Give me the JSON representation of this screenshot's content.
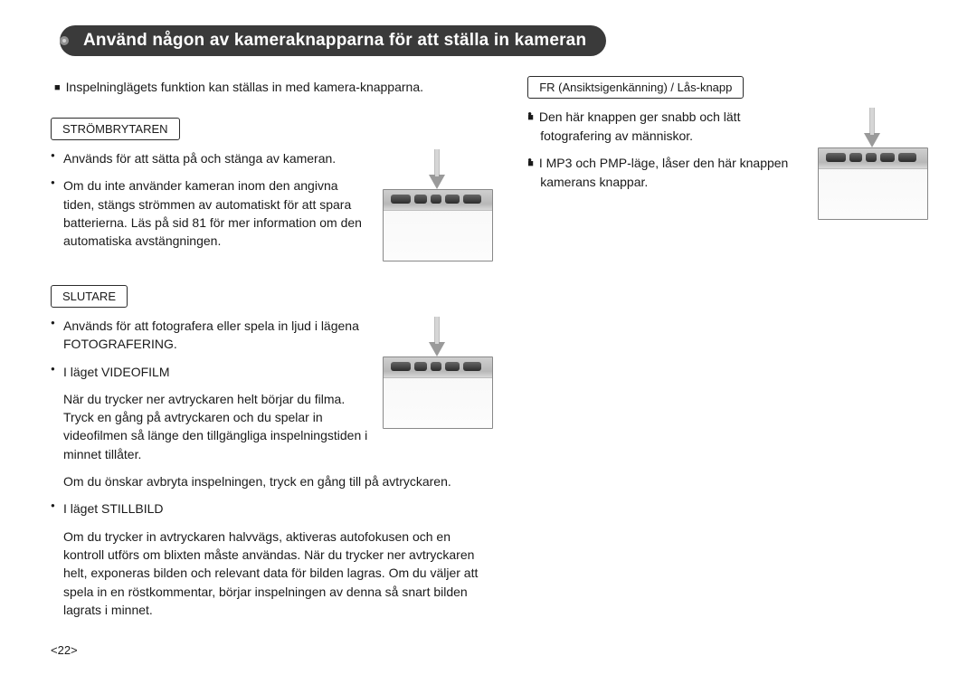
{
  "title": "Använd någon av kameraknapparna för att ställa in kameran",
  "intro": "Inspelninglägets funktion kan ställas in med kamera-knapparna.",
  "page_number": "<22>",
  "colors": {
    "title_bg": "#3a3a3a",
    "title_fg": "#ffffff",
    "body": "#1a1a1a",
    "border": "#2b2b2b"
  },
  "left": {
    "section1": {
      "heading": "STRÖMBRYTAREN",
      "items": [
        "Används för att sätta på och stänga av kameran.",
        "Om du inte använder kameran inom den angivna tiden, stängs strömmen av automatiskt för att spara batterierna. Läs på sid 81 för mer information om den automatiska avstängningen."
      ]
    },
    "section2": {
      "heading": "SLUTARE",
      "item1": "Används för att fotografera eller spela in ljud i lägena FOTOGRAFERING.",
      "item2": "I läget VIDEOFILM",
      "item2_body": "När du trycker ner avtryckaren helt börjar du filma. Tryck en gång på avtryckaren och du spelar in videofilmen så länge den tillgängliga inspelningstiden i minnet tillåter.",
      "item2_tail": "Om du önskar avbryta inspelningen, tryck en gång till på avtryckaren.",
      "item3": "I läget STILLBILD",
      "item3_body": "Om du trycker in avtryckaren halvvägs, aktiveras autofokusen och en kontroll utförs om blixten måste användas. När du trycker ner avtryckaren helt, exponeras bilden och relevant data för bilden lagras. Om du väljer att spela in en röstkommentar, börjar inspelningen av denna så snart bilden lagrats i minnet."
    }
  },
  "right": {
    "section1": {
      "heading": "FR (Ansiktsigenkänning) / Lås-knapp",
      "items": [
        "Den här knappen ger snabb och lätt fotografering av människor.",
        "I MP3 och PMP-läge, låser den här knappen kamerans knappar."
      ]
    }
  }
}
